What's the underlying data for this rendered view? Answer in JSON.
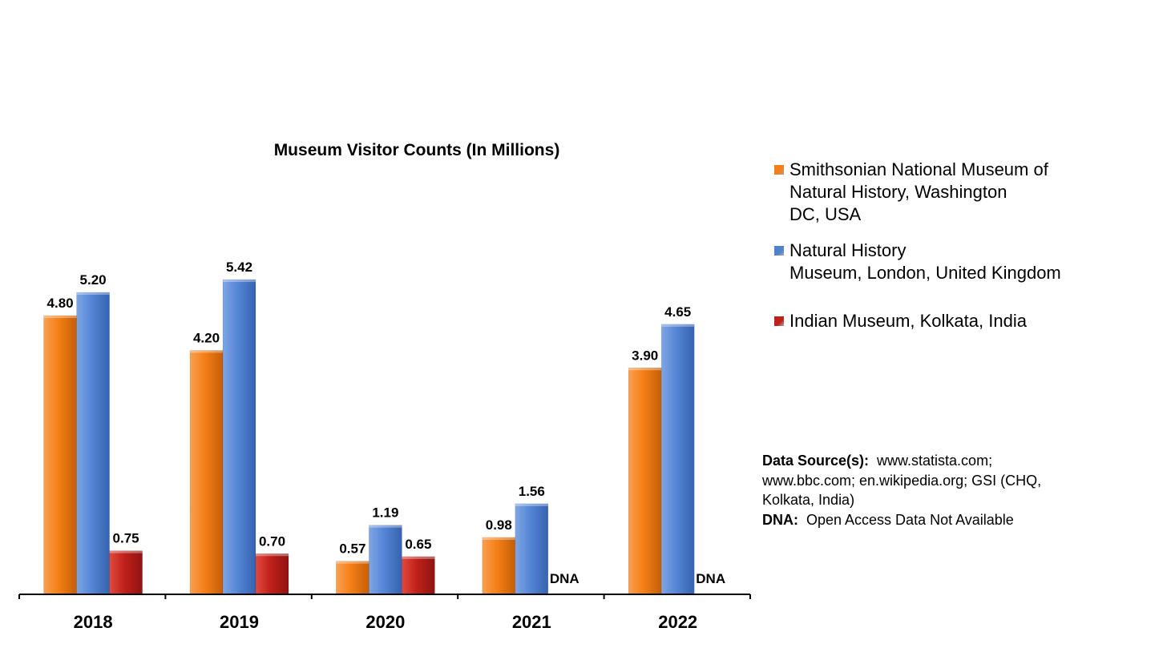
{
  "chart_data": {
    "type": "bar",
    "title": "Museum Visitor Counts (In Millions)",
    "xlabel": "",
    "ylabel": "",
    "ylim": [
      0,
      7
    ],
    "grid": false,
    "legend_position": "right",
    "categories": [
      "2018",
      "2019",
      "2020",
      "2021",
      "2022"
    ],
    "series": [
      {
        "name": "Smithsonian National Museum of Natural History, Washington DC, USA",
        "color": "#F47F16",
        "values": [
          4.8,
          4.2,
          0.57,
          0.98,
          3.9
        ],
        "labels": [
          "4.80",
          "4.20",
          "0.57",
          "0.98",
          "3.90"
        ]
      },
      {
        "name": "Natural History Museum, London, United Kingdom",
        "color": "#4F81D0",
        "values": [
          5.2,
          5.42,
          1.19,
          1.56,
          4.65
        ],
        "labels": [
          "5.20",
          "5.42",
          "1.19",
          "1.56",
          "4.65"
        ]
      },
      {
        "name": "Indian Museum, Kolkata, India",
        "color": "#C0201A",
        "values": [
          0.75,
          0.7,
          0.65,
          null,
          null
        ],
        "labels": [
          "0.75",
          "0.70",
          "0.65",
          "DNA",
          "DNA"
        ]
      }
    ]
  },
  "legend": {
    "items": [
      {
        "label": "Smithsonian National Museum of\nNatural History, Washington\nDC, USA",
        "color": "#F47F16"
      },
      {
        "label": "Natural History\nMuseum, London, United Kingdom",
        "color": "#4F81D0"
      },
      {
        "label": "Indian Museum, Kolkata, India",
        "color": "#C0201A"
      }
    ]
  },
  "notes": {
    "source_key": "Data Source(s):",
    "source_text": "www.statista.com; www.bbc.com; en.wikipedia.org; GSI (CHQ, Kolkata, India)",
    "dna_key": "DNA:",
    "dna_text": "Open Access Data Not Available"
  }
}
